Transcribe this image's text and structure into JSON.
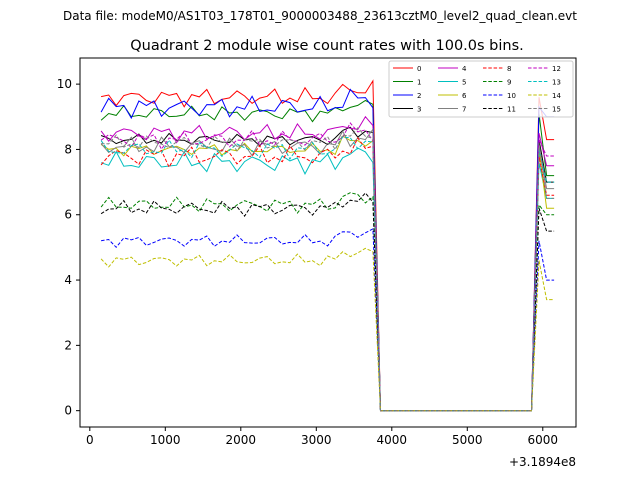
{
  "suptitle": "Data file: modeM0/AS1T03_178T01_9000003488_23613cztM0_level2_quad_clean.evt",
  "chart_data": {
    "type": "line",
    "title": "Quadrant 2 module wise count rates with 100.0s bins.",
    "xlabel": "",
    "ylabel": "",
    "x_offset_label": "+3.1894e8",
    "xlim": [
      -130,
      6440
    ],
    "ylim": [
      -0.5,
      10.8
    ],
    "xticks": [
      0,
      1000,
      2000,
      3000,
      4000,
      5000,
      6000
    ],
    "yticks": [
      0,
      2,
      4,
      6,
      8,
      10
    ],
    "grid": false,
    "legend": {
      "placement": "top-right",
      "columns": 4
    },
    "series": [
      {
        "name": "0",
        "color": "#ff0000",
        "dash": "solid",
        "level": 9.6,
        "amp": 0.3,
        "end": 8.3
      },
      {
        "name": "1",
        "color": "#008000",
        "dash": "solid",
        "level": 9.1,
        "amp": 0.25,
        "end": 7.2
      },
      {
        "name": "2",
        "color": "#0000ff",
        "dash": "solid",
        "level": 9.3,
        "amp": 0.35,
        "end": 9.0
      },
      {
        "name": "3",
        "color": "#000000",
        "dash": "solid",
        "level": 8.3,
        "amp": 0.2,
        "end": 7.0
      },
      {
        "name": "4",
        "color": "#c000c0",
        "dash": "solid",
        "level": 8.5,
        "amp": 0.3,
        "end": 7.5
      },
      {
        "name": "5",
        "color": "#00bfbf",
        "dash": "solid",
        "level": 7.6,
        "amp": 0.35,
        "end": 6.5
      },
      {
        "name": "6",
        "color": "#bfbf00",
        "dash": "solid",
        "level": 8.0,
        "amp": 0.2,
        "end": 6.2
      },
      {
        "name": "7",
        "color": "#808080",
        "dash": "solid",
        "level": 8.1,
        "amp": 0.3,
        "end": 6.8
      },
      {
        "name": "8",
        "color": "#ff0000",
        "dash": "dashed",
        "level": 7.8,
        "amp": 0.35,
        "end": 6.6
      },
      {
        "name": "9",
        "color": "#008000",
        "dash": "dashed",
        "level": 6.3,
        "amp": 0.25,
        "end": 6.0
      },
      {
        "name": "10",
        "color": "#0000ff",
        "dash": "dashed",
        "level": 5.2,
        "amp": 0.2,
        "end": 4.0
      },
      {
        "name": "11",
        "color": "#000000",
        "dash": "dashed",
        "level": 6.2,
        "amp": 0.25,
        "end": 5.5
      },
      {
        "name": "12",
        "color": "#c000c0",
        "dash": "dashed",
        "level": 8.3,
        "amp": 0.3,
        "end": 7.8
      },
      {
        "name": "13",
        "color": "#00bfbf",
        "dash": "dashed",
        "level": 8.0,
        "amp": 0.3,
        "end": 7.0
      },
      {
        "name": "14",
        "color": "#bfbf00",
        "dash": "dashed",
        "level": 4.6,
        "amp": 0.2,
        "end": 3.4
      },
      {
        "name": "15",
        "color": "#808080",
        "dash": "dashed",
        "level": 8.2,
        "amp": 0.25,
        "end": 6.5
      }
    ],
    "gap": {
      "start": 3850,
      "end": 5850,
      "value": 0.0
    },
    "bin": 100,
    "x_first": 150,
    "x_last": 6150
  }
}
